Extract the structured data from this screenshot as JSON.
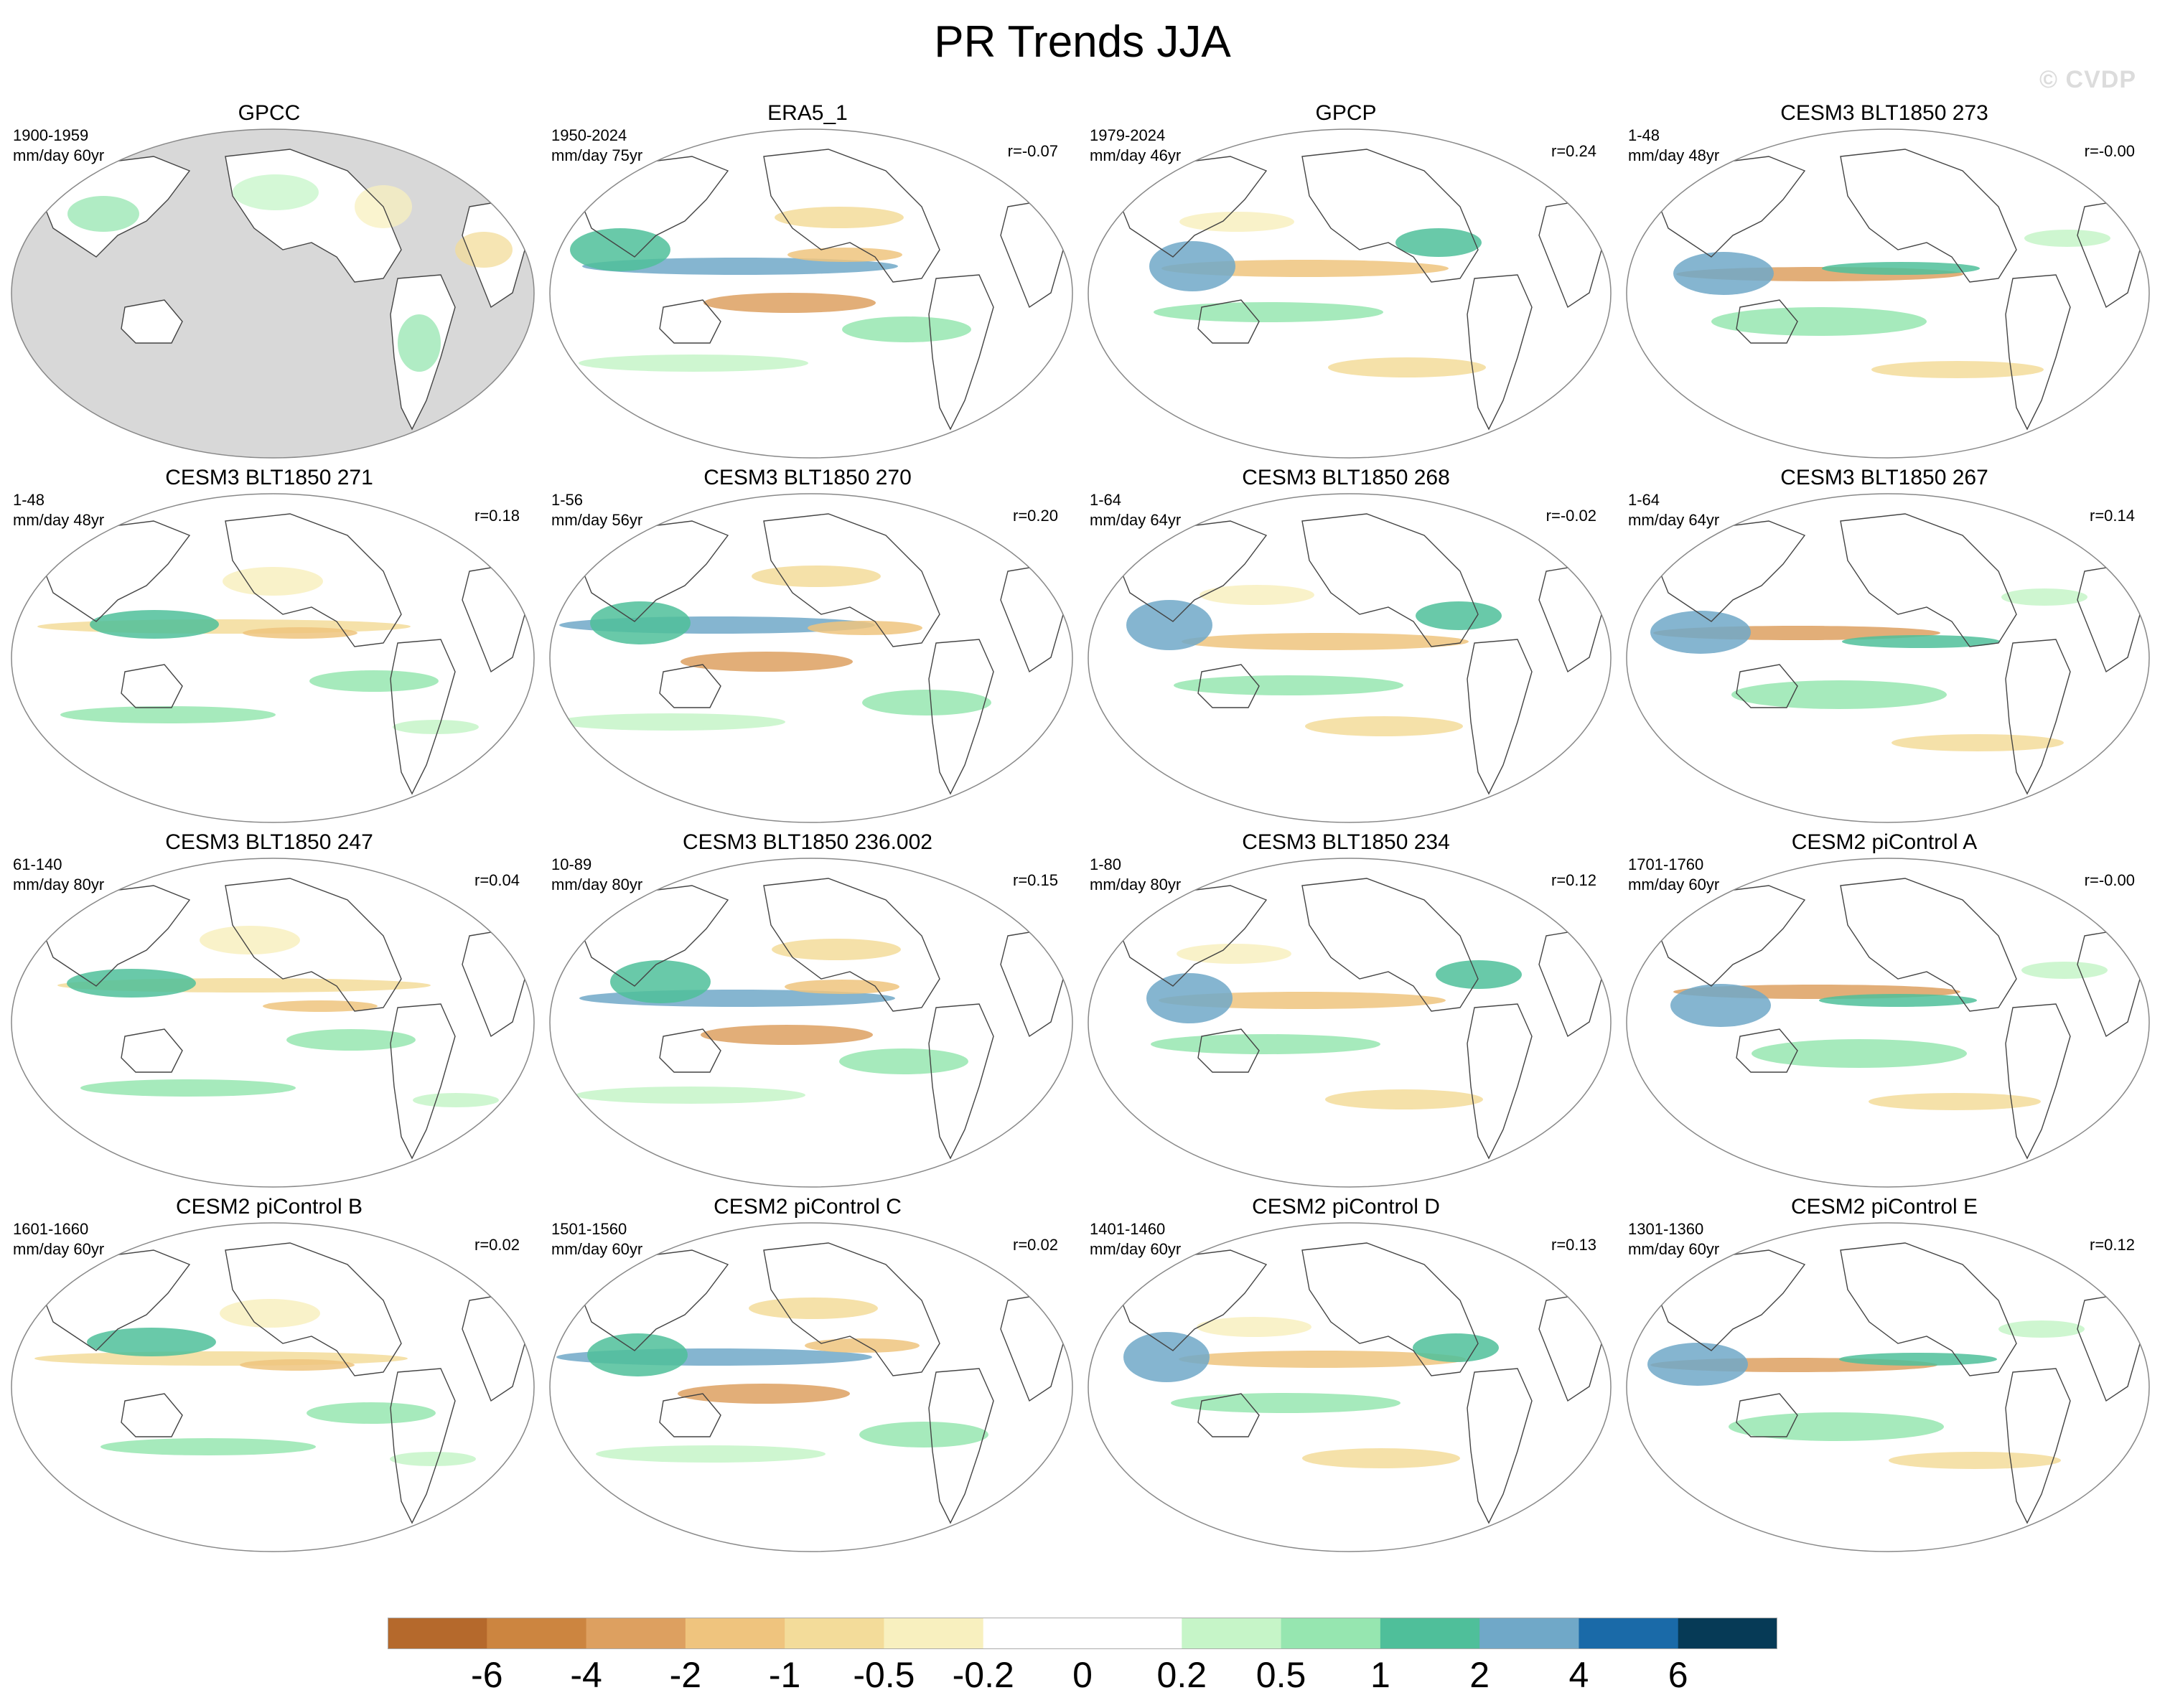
{
  "title": "PR Trends JJA",
  "watermark": "© CVDP",
  "chart_data": {
    "type": "heatmap",
    "description_kind": "map panels of precipitation trend",
    "panels": [
      {
        "title": "GPCC",
        "period": "1900-1959",
        "units": "mm/day 60yr",
        "corr": "",
        "land_only": true
      },
      {
        "title": "ERA5_1",
        "period": "1950-2024",
        "units": "mm/day 75yr",
        "corr": "r=-0.07",
        "land_only": false
      },
      {
        "title": "GPCP",
        "period": "1979-2024",
        "units": "mm/day 46yr",
        "corr": "r=0.24",
        "land_only": false
      },
      {
        "title": "CESM3 BLT1850 273",
        "period": "1-48",
        "units": "mm/day 48yr",
        "corr": "r=-0.00",
        "land_only": false
      },
      {
        "title": "CESM3 BLT1850 271",
        "period": "1-48",
        "units": "mm/day 48yr",
        "corr": "r=0.18",
        "land_only": false
      },
      {
        "title": "CESM3 BLT1850 270",
        "period": "1-56",
        "units": "mm/day 56yr",
        "corr": "r=0.20",
        "land_only": false
      },
      {
        "title": "CESM3 BLT1850 268",
        "period": "1-64",
        "units": "mm/day 64yr",
        "corr": "r=-0.02",
        "land_only": false
      },
      {
        "title": "CESM3 BLT1850 267",
        "period": "1-64",
        "units": "mm/day 64yr",
        "corr": "r=0.14",
        "land_only": false
      },
      {
        "title": "CESM3 BLT1850 247",
        "period": "61-140",
        "units": "mm/day 80yr",
        "corr": "r=0.04",
        "land_only": false
      },
      {
        "title": "CESM3 BLT1850 236.002",
        "period": "10-89",
        "units": "mm/day 80yr",
        "corr": "r=0.15",
        "land_only": false
      },
      {
        "title": "CESM3 BLT1850 234",
        "period": "1-80",
        "units": "mm/day 80yr",
        "corr": "r=0.12",
        "land_only": false
      },
      {
        "title": "CESM2 piControl A",
        "period": "1701-1760",
        "units": "mm/day 60yr",
        "corr": "r=-0.00",
        "land_only": false
      },
      {
        "title": "CESM2 piControl B",
        "period": "1601-1660",
        "units": "mm/day 60yr",
        "corr": "r=0.02",
        "land_only": false
      },
      {
        "title": "CESM2 piControl C",
        "period": "1501-1560",
        "units": "mm/day 60yr",
        "corr": "r=0.02",
        "land_only": false
      },
      {
        "title": "CESM2 piControl D",
        "period": "1401-1460",
        "units": "mm/day 60yr",
        "corr": "r=0.13",
        "land_only": false
      },
      {
        "title": "CESM2 piControl E",
        "period": "1301-1360",
        "units": "mm/day 60yr",
        "corr": "r=0.12",
        "land_only": false
      }
    ],
    "colorbar": {
      "labels": [
        "-6",
        "-4",
        "-2",
        "-1",
        "-0.5",
        "-0.2",
        "0",
        "0.2",
        "0.5",
        "1",
        "2",
        "4",
        "6"
      ],
      "colors": [
        "#b5692c",
        "#cc8540",
        "#dda060",
        "#efc47e",
        "#f3dc9a",
        "#f8f0bf",
        "#ffffff",
        "#ffffff",
        "#c6f5c8",
        "#96e6b0",
        "#4fbf9a",
        "#70a8c8",
        "#1a6aa8",
        "#063a56"
      ]
    }
  }
}
